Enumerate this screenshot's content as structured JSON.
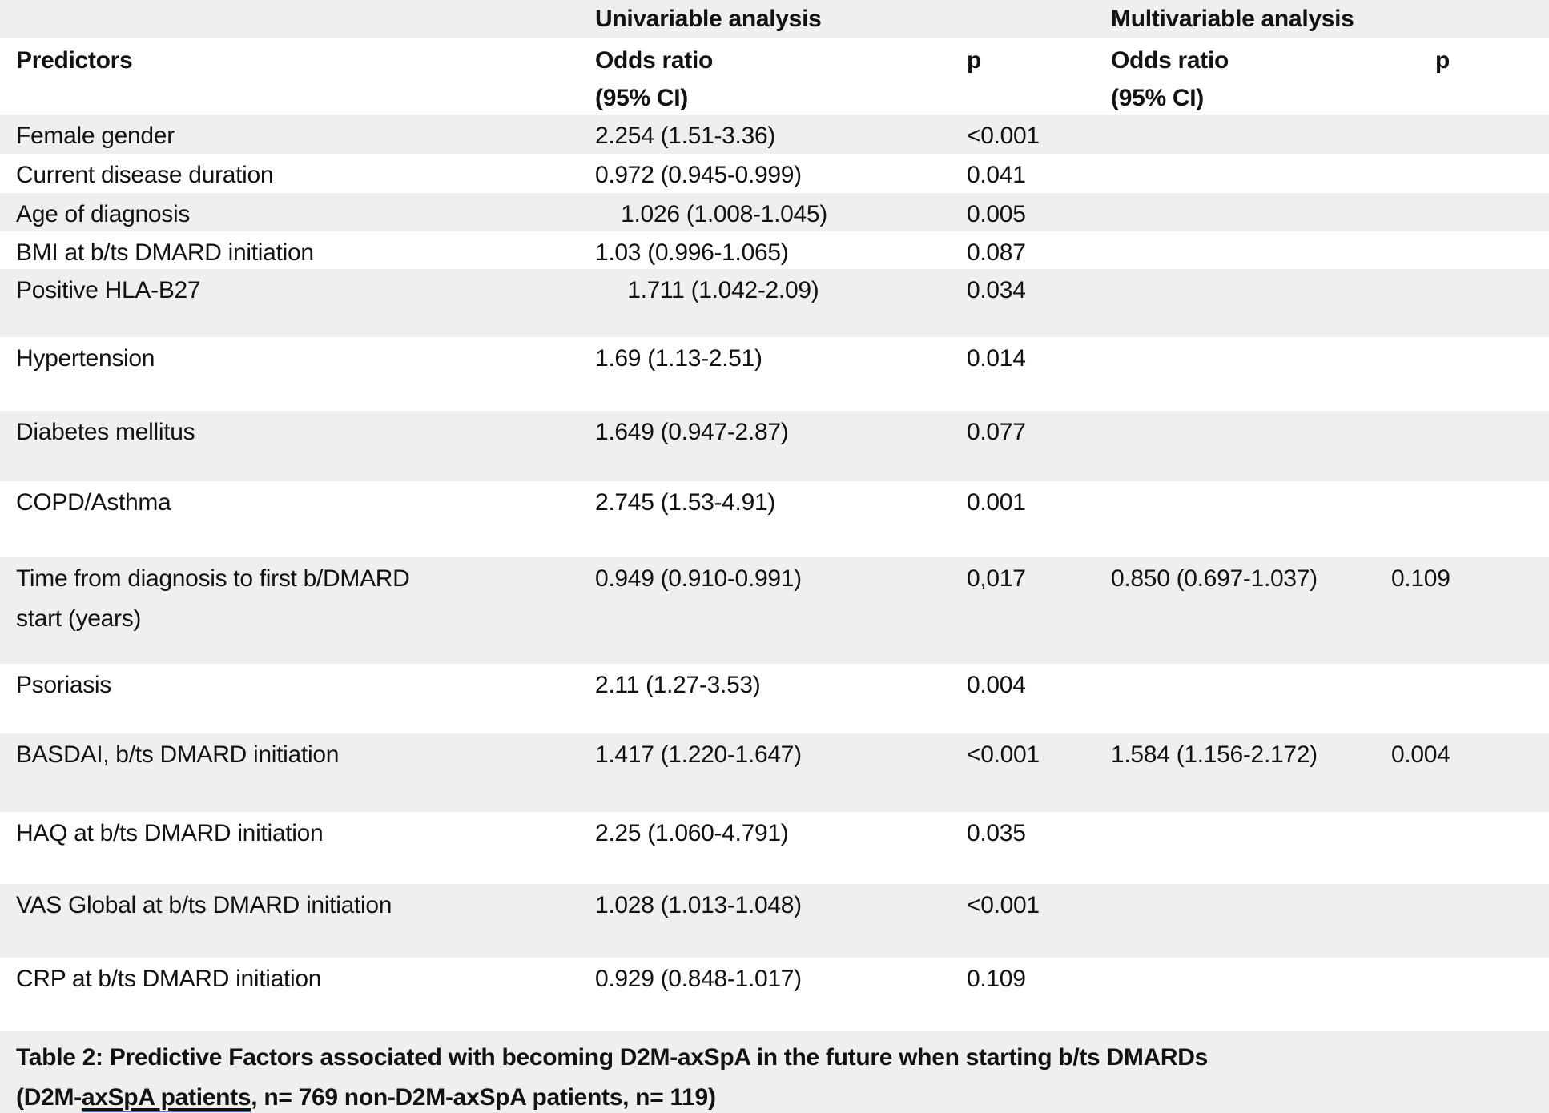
{
  "colors": {
    "row_stripe": "#efefef",
    "text": "#121212",
    "grammar_underline_accent": "#4a72c8"
  },
  "table": {
    "group_headers": {
      "univariable": "Univariable analysis",
      "multivariable": "Multivariable analysis"
    },
    "columns": {
      "predictors": "Predictors",
      "odds_ratio": "Odds ratio\n(95% CI)",
      "p": "p"
    },
    "rows": [
      {
        "predictor": "Female gender",
        "uni_or": "2.254 (1.51-3.36)",
        "uni_p": "<0.001",
        "multi_or": "",
        "multi_p": ""
      },
      {
        "predictor": "Current disease duration",
        "uni_or": "0.972 (0.945-0.999)",
        "uni_p": "0.041",
        "multi_or": "",
        "multi_p": ""
      },
      {
        "predictor": "Age of diagnosis",
        "uni_or": "    1.026 (1.008-1.045)",
        "uni_p": "0.005",
        "multi_or": "",
        "multi_p": ""
      },
      {
        "predictor": "BMI at b/ts DMARD initiation",
        "uni_or": "1.03 (0.996-1.065)",
        "uni_p": "0.087",
        "multi_or": "",
        "multi_p": ""
      },
      {
        "predictor": "Positive HLA-B27",
        "uni_or": "     1.711 (1.042-2.09)",
        "uni_p": "0.034",
        "multi_or": "",
        "multi_p": ""
      },
      {
        "predictor": "Hypertension",
        "uni_or": "1.69 (1.13-2.51)",
        "uni_p": "0.014",
        "multi_or": "",
        "multi_p": ""
      },
      {
        "predictor": "Diabetes mellitus",
        "uni_or": "1.649 (0.947-2.87)",
        "uni_p": "0.077",
        "multi_or": "",
        "multi_p": ""
      },
      {
        "predictor": "COPD/Asthma",
        "uni_or": "2.745 (1.53-4.91)",
        "uni_p": "0.001",
        "multi_or": "",
        "multi_p": ""
      },
      {
        "predictor": "Time from diagnosis to first b/DMARD\nstart (years)",
        "uni_or": "0.949 (0.910-0.991)",
        "uni_p": "0,017",
        "multi_or": "0.850 (0.697-1.037)",
        "multi_p": "0.109"
      },
      {
        "predictor": "Psoriasis",
        "uni_or": "2.11 (1.27-3.53)",
        "uni_p": "0.004",
        "multi_or": "",
        "multi_p": ""
      },
      {
        "predictor": "BASDAI, b/ts DMARD initiation",
        "uni_or": "1.417 (1.220-1.647)",
        "uni_p": "<0.001",
        "multi_or": "1.584 (1.156-2.172)",
        "multi_p": "0.004"
      },
      {
        "predictor": "HAQ at b/ts DMARD initiation",
        "uni_or": "2.25 (1.060-4.791)",
        "uni_p": "0.035",
        "multi_or": "",
        "multi_p": ""
      },
      {
        "predictor": "VAS Global at b/ts DMARD initiation",
        "uni_or": "1.028 (1.013-1.048)",
        "uni_p": "<0.001",
        "multi_or": "",
        "multi_p": ""
      },
      {
        "predictor": "CRP at b/ts DMARD initiation",
        "uni_or": "0.929 (0.848-1.017)",
        "uni_p": "0.109",
        "multi_or": "",
        "multi_p": ""
      }
    ]
  },
  "caption": {
    "line1": "Table 2: Predictive Factors associated with becoming D2M-axSpA in the future when starting b/ts DMARDs",
    "line2_prefix": "(D2M-",
    "line2_underlined": "axSpA patients",
    "line2_suffix": ", n= 769 non-D2M-axSpA patients, n= 119)"
  }
}
